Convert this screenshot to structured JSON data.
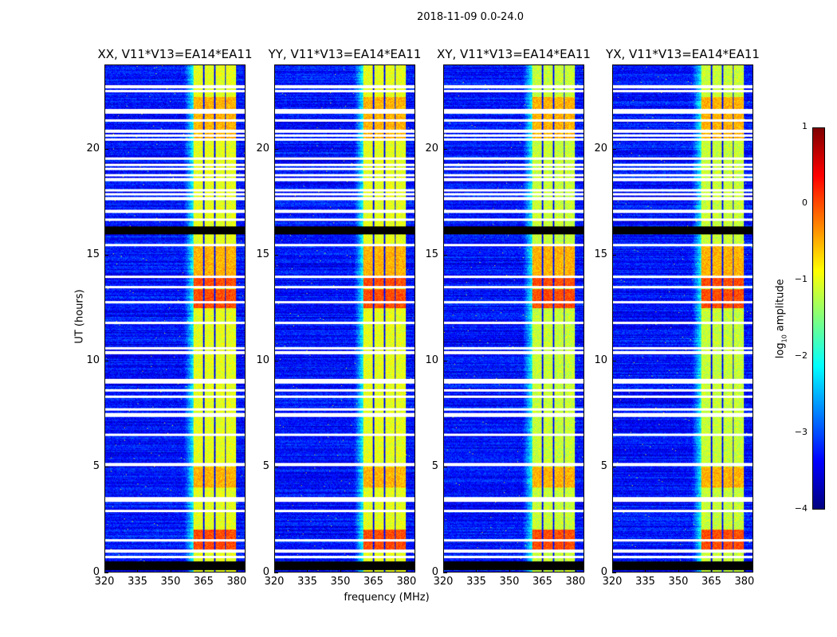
{
  "suptitle": "2018-11-09 0.0-24.0",
  "chart_data": {
    "type": "heatmap",
    "title": "2018-11-09 0.0-24.0",
    "xlabel": "frequency (MHz)",
    "ylabel": "UT (hours)",
    "xlim": [
      320,
      384
    ],
    "ylim": [
      0,
      24
    ],
    "xticks": [
      320,
      335,
      350,
      365,
      380
    ],
    "yticks": [
      0,
      5,
      10,
      15,
      20
    ],
    "panels": [
      {
        "title": "XX, V11*V13=EA14*EA11"
      },
      {
        "title": "YY, V11*V13=EA14*EA11"
      },
      {
        "title": "XY, V11*V13=EA14*EA11"
      },
      {
        "title": "YX, V11*V13=EA14*EA11"
      }
    ],
    "colorbar": {
      "label": "log",
      "label_sub": "10",
      "label_rest": " amplitude",
      "range": [
        -4,
        1
      ],
      "ticks": [
        1,
        0,
        -1,
        -2,
        -3,
        -4
      ],
      "tick_labels": [
        "1",
        "0",
        "−1",
        "−2",
        "−3",
        "−4"
      ],
      "colormap": "jet"
    },
    "features": {
      "background_log_amp": -3.3,
      "bright_band_mhz": [
        360.3,
        380
      ],
      "bright_band_log_amp": -1.0,
      "band_gap_columns_mhz": [
        365,
        370,
        375
      ],
      "hot_hours": [
        [
          1.0,
          2.0
        ],
        [
          12.5,
          13.4
        ],
        [
          13.5,
          14.0
        ]
      ],
      "warm_hours": [
        [
          14.0,
          15.5
        ],
        [
          4.0,
          5.0
        ],
        [
          20.5,
          22.5
        ]
      ],
      "flagged_white_hours": [
        23.0,
        22.8,
        21.9,
        21.8,
        21.4,
        20.9,
        20.7,
        20.5,
        19.6,
        19.3,
        19.1,
        18.8,
        18.6,
        18.1,
        17.9,
        17.7,
        17.1,
        16.7,
        15.5,
        14.0,
        13.5,
        12.8,
        11.8,
        10.6,
        10.4,
        9.1,
        9.0,
        8.6,
        8.3,
        7.7,
        7.5,
        7.4,
        6.5,
        5.1,
        3.5,
        3.4,
        2.9,
        1.5,
        1.0,
        0.7
      ],
      "flagged_black_hours": [
        [
          16.0,
          16.4
        ],
        [
          0.1,
          0.5
        ]
      ]
    }
  }
}
